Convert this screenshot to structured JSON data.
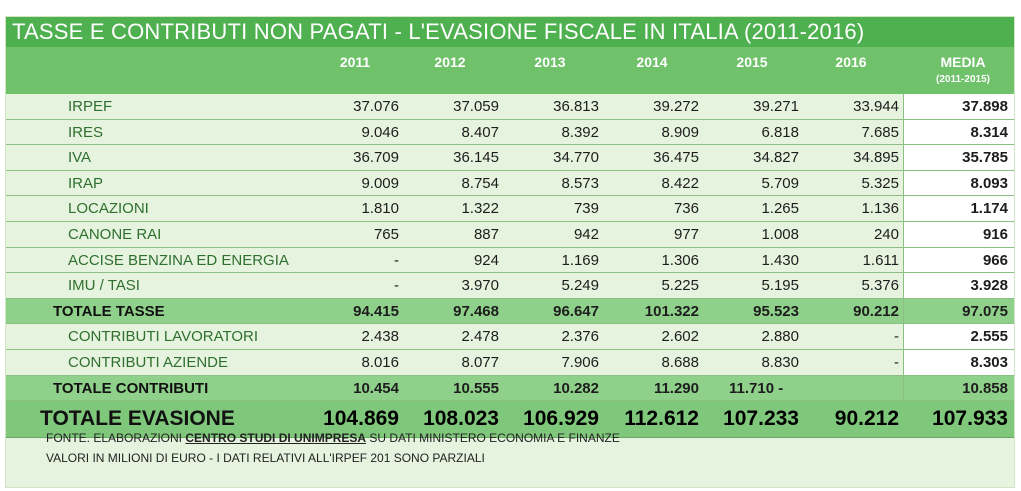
{
  "title": "TASSE E CONTRIBUTI NON PAGATI - L'EVASIONE FISCALE IN ITALIA (2011-2016)",
  "years": [
    "2011",
    "2012",
    "2013",
    "2014",
    "2015",
    "2016"
  ],
  "media_label": "MEDIA",
  "media_sub": "(2011-2015)",
  "tax_rows": [
    {
      "label": "IRPEF",
      "values": [
        "37.076",
        "37.059",
        "36.813",
        "39.272",
        "39.271",
        "33.944"
      ],
      "media": "37.898"
    },
    {
      "label": "IRES",
      "values": [
        "9.046",
        "8.407",
        "8.392",
        "8.909",
        "6.818",
        "7.685"
      ],
      "media": "8.314"
    },
    {
      "label": "IVA",
      "values": [
        "36.709",
        "36.145",
        "34.770",
        "36.475",
        "34.827",
        "34.895"
      ],
      "media": "35.785"
    },
    {
      "label": "IRAP",
      "values": [
        "9.009",
        "8.754",
        "8.573",
        "8.422",
        "5.709",
        "5.325"
      ],
      "media": "8.093"
    },
    {
      "label": "LOCAZIONI",
      "values": [
        "1.810",
        "1.322",
        "739",
        "736",
        "1.265",
        "1.136"
      ],
      "media": "1.174"
    },
    {
      "label": "CANONE RAI",
      "values": [
        "765",
        "887",
        "942",
        "977",
        "1.008",
        "240"
      ],
      "media": "916"
    },
    {
      "label": "ACCISE BENZINA ED ENERGIA",
      "values": [
        "-",
        "924",
        "1.169",
        "1.306",
        "1.430",
        "1.611"
      ],
      "media": "966"
    },
    {
      "label": "IMU / TASI",
      "values": [
        "-",
        "3.970",
        "5.249",
        "5.225",
        "5.195",
        "5.376"
      ],
      "media": "3.928"
    }
  ],
  "total_tasse": {
    "label": "TOTALE TASSE",
    "values": [
      "94.415",
      "97.468",
      "96.647",
      "101.322",
      "95.523",
      "90.212"
    ],
    "media": "97.075"
  },
  "contrib_rows": [
    {
      "label": "CONTRIBUTI LAVORATORI",
      "values": [
        "2.438",
        "2.478",
        "2.376",
        "2.602",
        "2.880",
        "-"
      ],
      "media": "2.555"
    },
    {
      "label": "CONTRIBUTI AZIENDE",
      "values": [
        "8.016",
        "8.077",
        "7.906",
        "8.688",
        "8.830",
        "-"
      ],
      "media": "8.303"
    }
  ],
  "total_contributi": {
    "label": "TOTALE CONTRIBUTI",
    "values": [
      "10.454",
      "10.555",
      "10.282",
      "11.290",
      "11.710 -",
      ""
    ],
    "media": "10.858"
  },
  "total_evasione": {
    "label": "TOTALE EVASIONE",
    "values": [
      "104.869",
      "108.023",
      "106.929",
      "112.612",
      "107.233",
      "90.212"
    ],
    "media": "107.933"
  },
  "footer": {
    "line1_pre": "FONTE. ELABORAZIONI ",
    "line1_link": "CENTRO STUDI DI UNIMPRESA",
    "line1_post": " SU DATI MINISTERO ECONOMIA E FINANZE",
    "line2": "VALORI IN MILIONI DI EURO - I DATI RELATIVI ALL'IRPEF 201 SONO PARZIALI"
  }
}
